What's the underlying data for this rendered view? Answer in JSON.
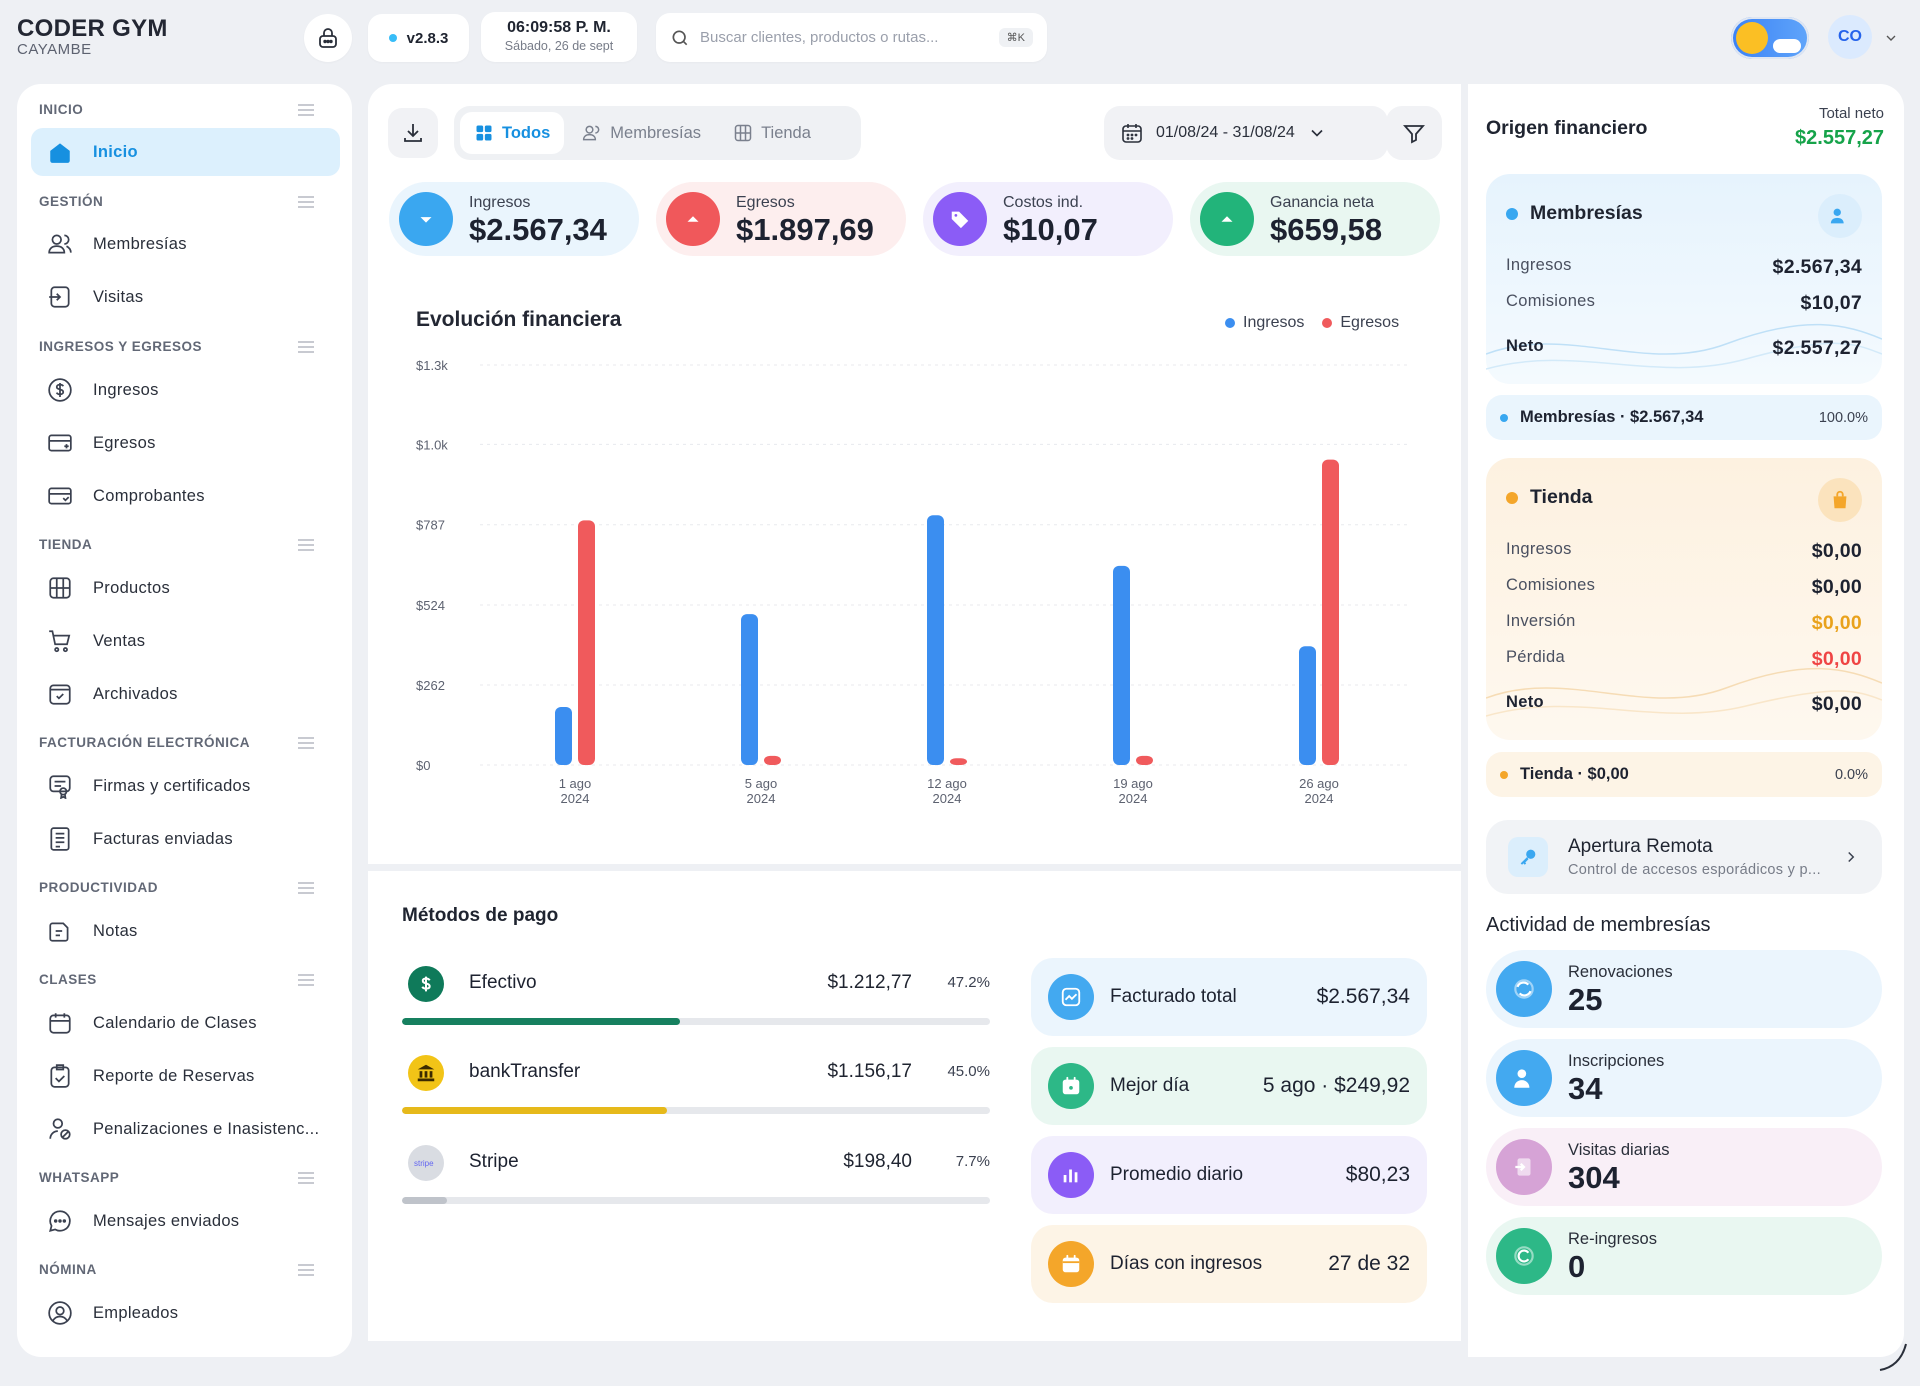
{
  "brand": {
    "title": "CODER GYM",
    "subtitle": "CAYAMBE"
  },
  "topbar": {
    "version": "v2.8.3",
    "time": "06:09:58 P. M.",
    "date": "Sábado, 26 de sept",
    "search_placeholder": "Buscar clientes, productos o rutas...",
    "search_shortcut": "⌘K",
    "avatar_initials": "CO"
  },
  "sidebar": {
    "sections": [
      {
        "title": "INICIO",
        "items": [
          {
            "label": "Inicio",
            "icon": "home-icon",
            "active": true
          }
        ]
      },
      {
        "title": "GESTIÓN",
        "items": [
          {
            "label": "Membresías",
            "icon": "users-icon"
          },
          {
            "label": "Visitas",
            "icon": "enter-icon"
          }
        ]
      },
      {
        "title": "INGRESOS Y EGRESOS",
        "items": [
          {
            "label": "Ingresos",
            "icon": "dollar-circle-icon"
          },
          {
            "label": "Egresos",
            "icon": "card-out-icon"
          },
          {
            "label": "Comprobantes",
            "icon": "receipt-card-icon"
          }
        ]
      },
      {
        "title": "TIENDA",
        "items": [
          {
            "label": "Productos",
            "icon": "box-icon"
          },
          {
            "label": "Ventas",
            "icon": "cart-icon"
          },
          {
            "label": "Archivados",
            "icon": "archive-icon"
          }
        ]
      },
      {
        "title": "FACTURACIÓN ELECTRÓNICA",
        "items": [
          {
            "label": "Firmas y certificados",
            "icon": "certificate-icon"
          },
          {
            "label": "Facturas enviadas",
            "icon": "invoice-icon"
          }
        ]
      },
      {
        "title": "PRODUCTIVIDAD",
        "items": [
          {
            "label": "Notas",
            "icon": "notes-icon"
          }
        ]
      },
      {
        "title": "CLASES",
        "items": [
          {
            "label": "Calendario de Clases",
            "icon": "calendar-icon"
          },
          {
            "label": "Reporte de Reservas",
            "icon": "clipboard-icon"
          },
          {
            "label": "Penalizaciones e Inasistenc...",
            "icon": "user-penalty-icon"
          }
        ]
      },
      {
        "title": "WHATSAPP",
        "items": [
          {
            "label": "Mensajes enviados",
            "icon": "chat-icon"
          }
        ]
      },
      {
        "title": "NÓMINA",
        "items": [
          {
            "label": "Empleados",
            "icon": "user-circle-icon"
          }
        ]
      }
    ]
  },
  "toolbar": {
    "tabs": [
      {
        "label": "Todos",
        "active": true
      },
      {
        "label": "Membresías"
      },
      {
        "label": "Tienda"
      }
    ],
    "date_range": "01/08/24 - 31/08/24"
  },
  "kpis": [
    {
      "label": "Ingresos",
      "value": "$2.567,34",
      "color": "#3aa7f0",
      "bg": "#eaf5fd"
    },
    {
      "label": "Egresos",
      "value": "$1.897,69",
      "color": "#f0585b",
      "bg": "#fdeeee"
    },
    {
      "label": "Costos ind.",
      "value": "$10,07",
      "color": "#8b5cf6",
      "bg": "#f2effd"
    },
    {
      "label": "Ganancia neta",
      "value": "$659,58",
      "color": "#22b47a",
      "bg": "#e9f7f1"
    }
  ],
  "chart_title": "Evolución financiera",
  "chart_data": {
    "type": "bar",
    "categories": [
      "1 ago 2024",
      "5 ago 2024",
      "12 ago 2024",
      "19 ago 2024",
      "26 ago 2024"
    ],
    "x_tick_lines": [
      [
        "1 ago",
        "2024"
      ],
      [
        "5 ago",
        "2024"
      ],
      [
        "12 ago",
        "2024"
      ],
      [
        "19 ago",
        "2024"
      ],
      [
        "26 ago",
        "2024"
      ]
    ],
    "series": [
      {
        "name": "Ingresos",
        "color": "#3b8ef0",
        "values": [
          190,
          494,
          818,
          652,
          389
        ]
      },
      {
        "name": "Egresos",
        "color": "#f05a5c",
        "values": [
          801,
          30,
          22,
          30,
          1000
        ]
      }
    ],
    "y_ticks": [
      "$0",
      "$262",
      "$524",
      "$787",
      "$1.0k",
      "$1.3k"
    ],
    "y_tick_values": [
      0,
      262,
      524,
      787,
      1050,
      1310
    ],
    "ylim": [
      0,
      1310
    ],
    "grid": true,
    "legend_position": "top-right"
  },
  "payment_methods": {
    "title": "Métodos de pago",
    "items": [
      {
        "name": "Efectivo",
        "amount": "$1.212,77",
        "percent": "47.2%",
        "fraction": 0.472,
        "color": "#16805f",
        "icon": "dollar-icon"
      },
      {
        "name": "bankTransfer",
        "amount": "$1.156,17",
        "percent": "45.0%",
        "fraction": 0.45,
        "color": "#e6b91a",
        "icon": "bank-icon"
      },
      {
        "name": "Stripe",
        "amount": "$198,40",
        "percent": "7.7%",
        "fraction": 0.077,
        "color": "#bfc3ca",
        "icon": "stripe-icon"
      }
    ]
  },
  "summary_stats": [
    {
      "label": "Facturado total",
      "value": "$2.567,34",
      "color": "#43a9f0",
      "bg": "#ebf5fd",
      "icon": "chart-icon"
    },
    {
      "label": "Mejor día",
      "value": "5 ago · $249,92",
      "color": "#2db887",
      "bg": "#e9f7f1",
      "icon": "calendar-star-icon"
    },
    {
      "label": "Promedio diario",
      "value": "$80,23",
      "color": "#8b5cf6",
      "bg": "#f2effd",
      "icon": "bar-chart-icon"
    },
    {
      "label": "Días con ingresos",
      "value": "27 de 32",
      "color": "#f4a62a",
      "bg": "#fdf4e6",
      "icon": "calendar-icon"
    }
  ],
  "origin": {
    "title": "Origen financiero",
    "total_label": "Total neto",
    "total_value": "$2.557,27",
    "memberships": {
      "title": "Membresías",
      "rows": [
        {
          "label": "Ingresos",
          "value": "$2.567,34"
        },
        {
          "label": "Comisiones",
          "value": "$10,07"
        }
      ],
      "net_label": "Neto",
      "net_value": "$2.557,27",
      "summary": "Membresías · $2.567,34",
      "summary_percent": "100.0%"
    },
    "store": {
      "title": "Tienda",
      "rows": [
        {
          "label": "Ingresos",
          "value": "$0,00",
          "color": "#1d2230"
        },
        {
          "label": "Comisiones",
          "value": "$0,00",
          "color": "#1d2230"
        },
        {
          "label": "Inversión",
          "value": "$0,00",
          "color": "#e9a21c"
        },
        {
          "label": "Pérdida",
          "value": "$0,00",
          "color": "#ef4444"
        }
      ],
      "net_label": "Neto",
      "net_value": "$0,00",
      "summary": "Tienda · $0,00",
      "summary_percent": "0.0%"
    }
  },
  "remote": {
    "title": "Apertura Remota",
    "subtitle": "Control de accesos esporádicos y p..."
  },
  "activity": {
    "title": "Actividad de membresías",
    "items": [
      {
        "label": "Renovaciones",
        "value": "25",
        "color": "#43a9f0",
        "bg": "#ebf5fd"
      },
      {
        "label": "Inscripciones",
        "value": "34",
        "color": "#43a9f0",
        "bg": "#ebf5fd"
      },
      {
        "label": "Visitas diarias",
        "value": "304",
        "color": "#d6a3d6",
        "bg": "#f9eff7"
      },
      {
        "label": "Re-ingresos",
        "value": "0",
        "color": "#2db887",
        "bg": "#e9f7f1"
      }
    ]
  }
}
